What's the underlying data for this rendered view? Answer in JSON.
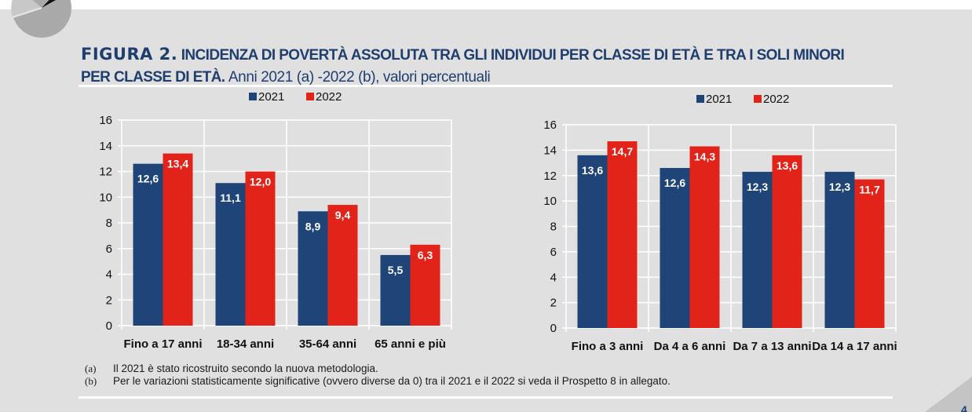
{
  "figure": {
    "number_label": "FIGURA 2.",
    "title_bold_line1": "INCIDENZA DI POVERTÀ ASSOLUTA TRA  GLI INDIVIDUI PER CLASSE DI ETÀ E TRA I SOLI MINORI",
    "title_bold_line2": "PER CLASSE DI ETÀ.",
    "subtitle": "Anni 2021 (a) -2022 (b), valori percentuali"
  },
  "colors": {
    "series_2021": "#1f4477",
    "series_2022": "#e2231a",
    "title": "#1f3e6e",
    "plot_bg": "#e0e0e0",
    "grid": "#ffffff"
  },
  "chart_data": [
    {
      "type": "bar",
      "title": "Incidenza di povertà assoluta tra gli individui per classe di età",
      "xlabel": "",
      "ylabel": "",
      "ylim": [
        0,
        16
      ],
      "yticks": [
        0,
        2,
        4,
        6,
        8,
        10,
        12,
        14,
        16
      ],
      "grid": true,
      "legend_position": "top-center",
      "categories": [
        "Fino a 17 anni",
        "18-34 anni",
        "35-64 anni",
        "65 anni e più"
      ],
      "series": [
        {
          "name": "2021",
          "values": [
            12.6,
            11.1,
            8.9,
            5.5
          ],
          "labels": [
            "12,6",
            "11,1",
            "8,9",
            "5,5"
          ]
        },
        {
          "name": "2022",
          "values": [
            13.4,
            12.0,
            9.4,
            6.3
          ],
          "labels": [
            "13,4",
            "12,0",
            "9,4",
            "6,3"
          ]
        }
      ]
    },
    {
      "type": "bar",
      "title": "Incidenza di povertà assoluta tra i soli minori per classe di età",
      "xlabel": "",
      "ylabel": "",
      "ylim": [
        0,
        16
      ],
      "yticks": [
        0,
        2,
        4,
        6,
        8,
        10,
        12,
        14,
        16
      ],
      "grid": true,
      "legend_position": "top-center",
      "categories": [
        "Fino a 3 anni",
        "Da 4 a 6 anni",
        "Da 7 a 13 anni",
        "Da 14 a 17 anni"
      ],
      "series": [
        {
          "name": "2021",
          "values": [
            13.6,
            12.6,
            12.3,
            12.3
          ],
          "labels": [
            "13,6",
            "12,6",
            "12,3",
            "12,3"
          ]
        },
        {
          "name": "2022",
          "values": [
            14.7,
            14.3,
            13.6,
            11.7
          ],
          "labels": [
            "14,7",
            "14,3",
            "13,6",
            "11,7"
          ]
        }
      ]
    }
  ],
  "notes": [
    {
      "key": "(a)",
      "text": "Il 2021 è stato ricostruito secondo la nuova metodologia."
    },
    {
      "key": "(b)",
      "text": "Per le variazioni statisticamente significative (ovvero diverse da 0) tra il 2021 e il 2022 si veda il Prospetto 8 in allegato."
    }
  ],
  "page_number": "4"
}
